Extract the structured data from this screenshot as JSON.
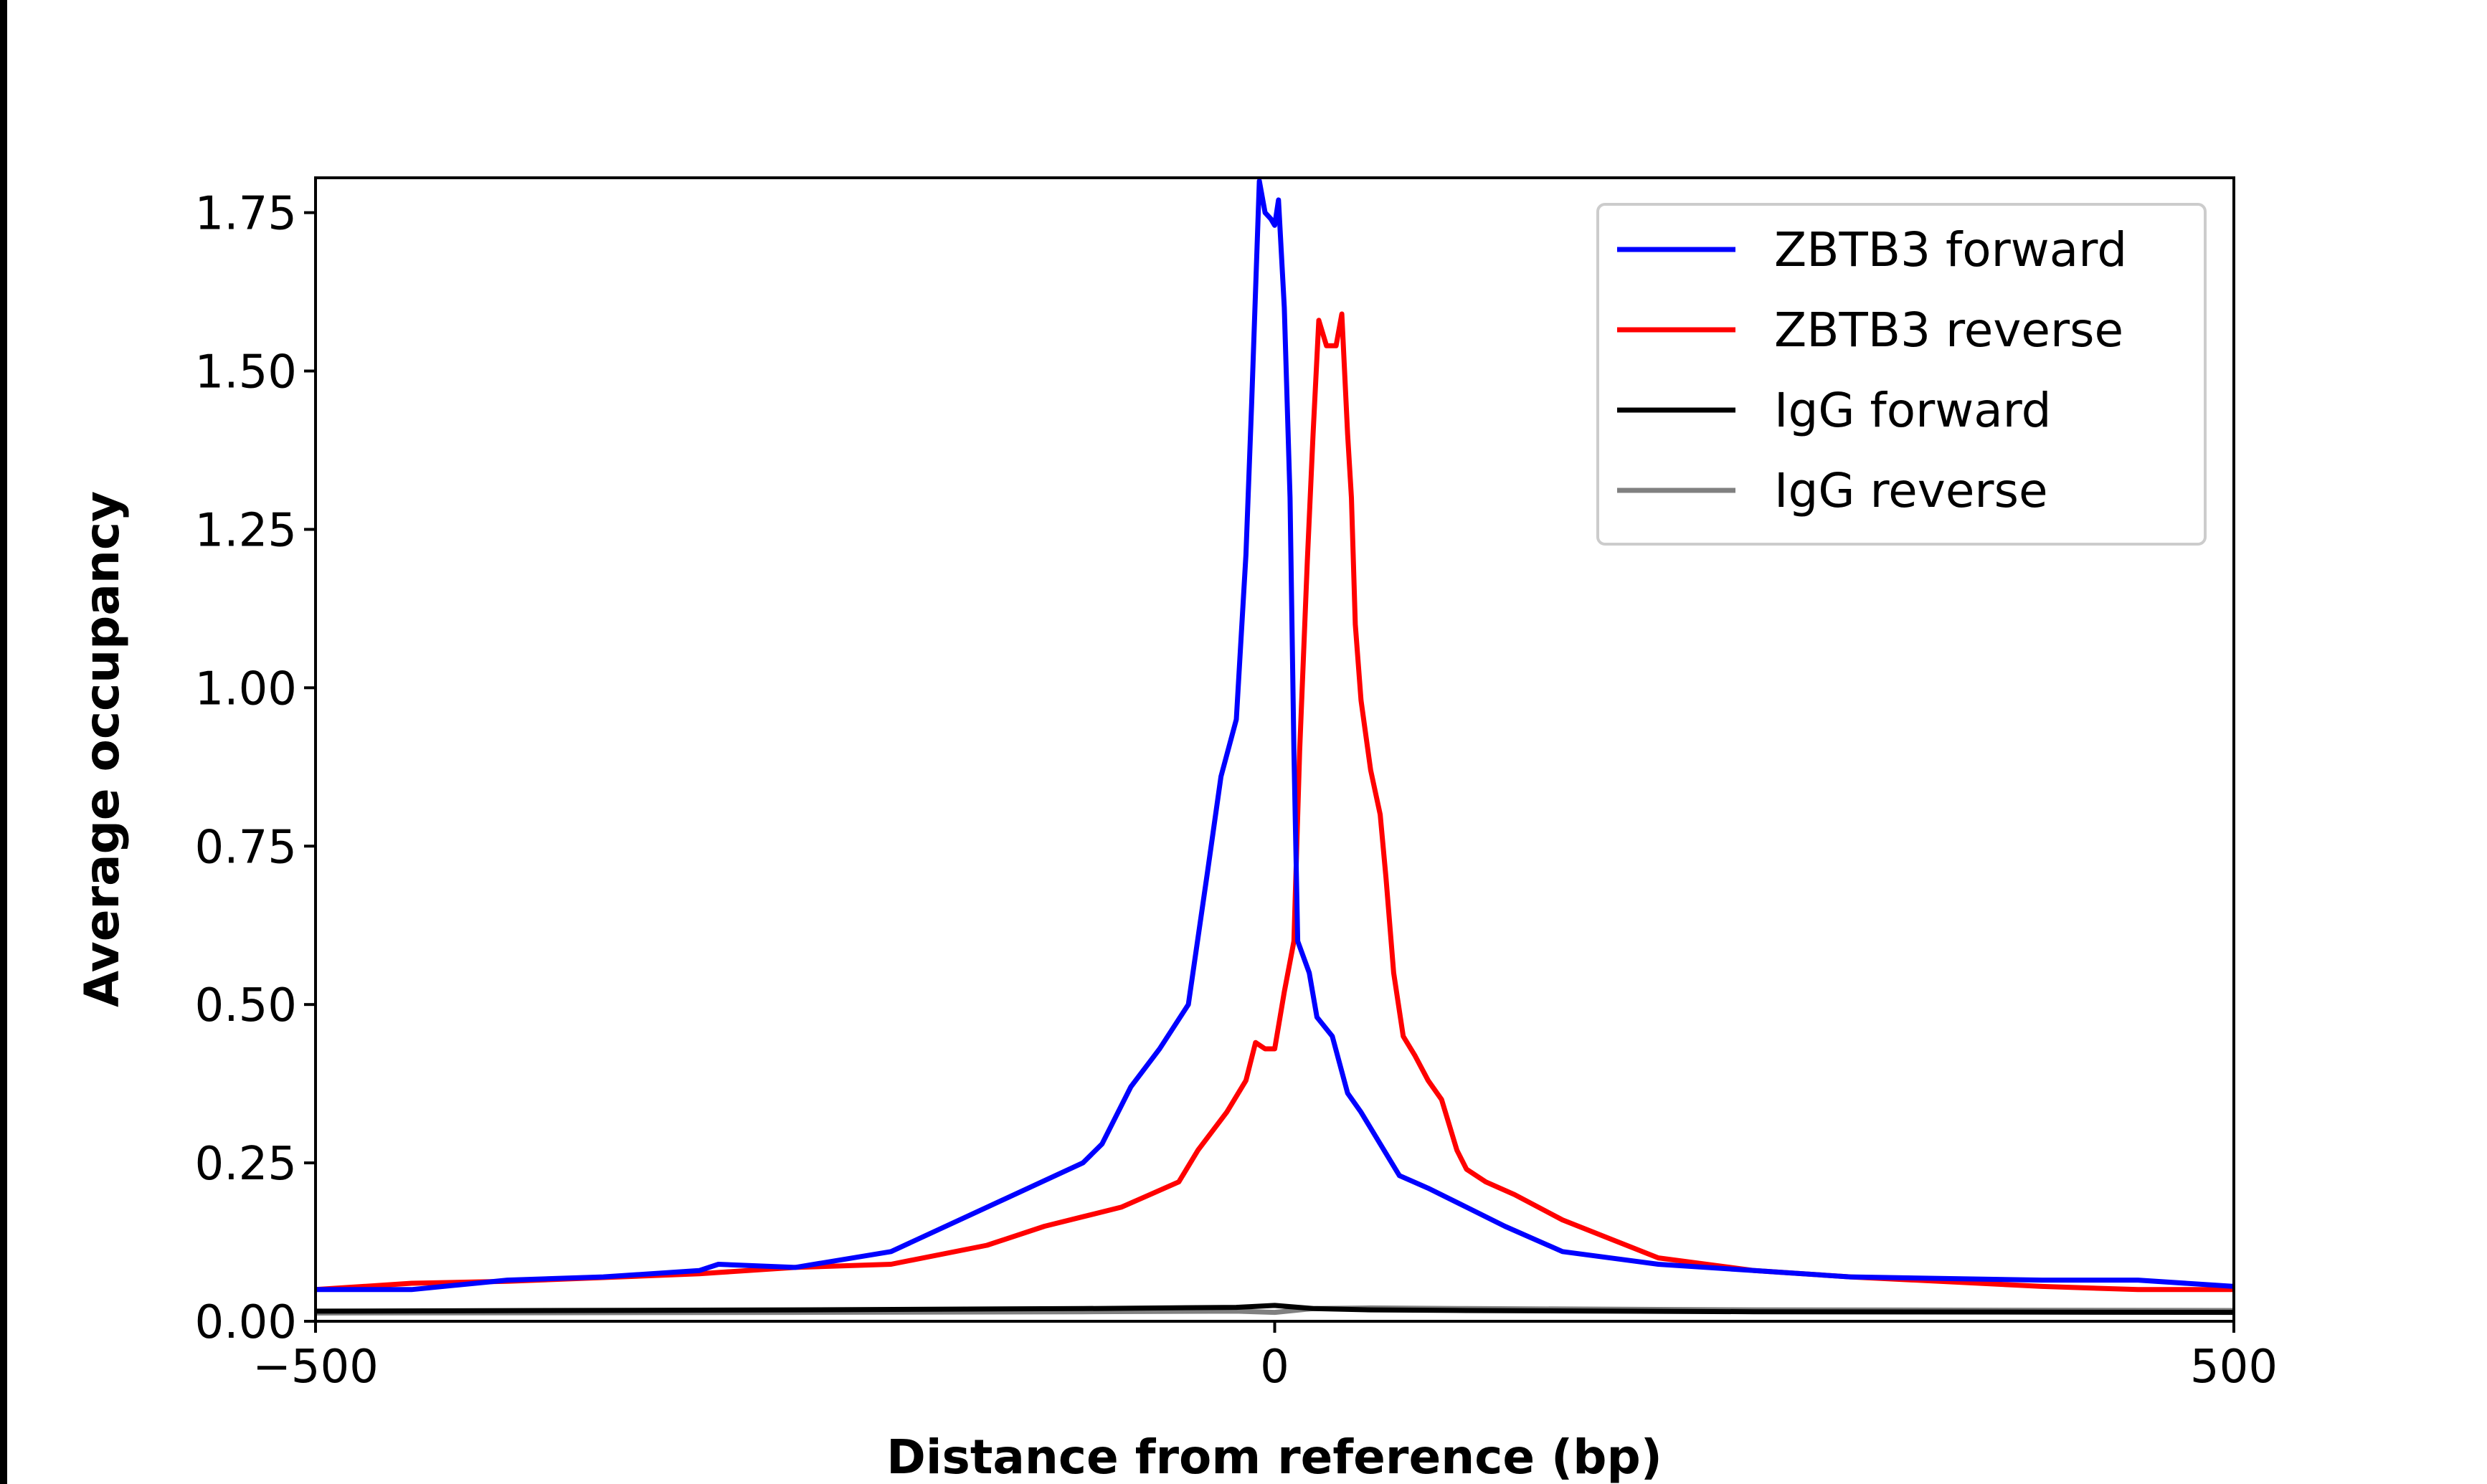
{
  "chart_data": {
    "type": "line",
    "title": "",
    "xlabel": "Distance from reference (bp)",
    "ylabel": "Average occupancy",
    "xlim": [
      -500,
      500
    ],
    "ylim": [
      0,
      1.805
    ],
    "xticks": [
      -500,
      0,
      500
    ],
    "xtick_labels": [
      "−500",
      "0",
      "500"
    ],
    "yticks": [
      0,
      0.25,
      0.5,
      0.75,
      1.0,
      1.25,
      1.5,
      1.75
    ],
    "ytick_labels": [
      "0.00",
      "0.25",
      "0.50",
      "0.75",
      "1.00",
      "1.25",
      "1.50",
      "1.75"
    ],
    "grid": false,
    "legend_position": "top-right",
    "series": [
      {
        "name": "ZBTB3 forward",
        "color": "#0000ff",
        "x": [
          -500,
          -450,
          -400,
          -350,
          -300,
          -290,
          -250,
          -200,
          -150,
          -100,
          -90,
          -75,
          -60,
          -45,
          -35,
          -28,
          -20,
          -15,
          -12,
          -8,
          -5,
          -2,
          0,
          2,
          5,
          8,
          10,
          12,
          18,
          22,
          30,
          38,
          45,
          55,
          65,
          80,
          100,
          120,
          150,
          200,
          250,
          300,
          400,
          450,
          500
        ],
        "y": [
          0.05,
          0.05,
          0.065,
          0.07,
          0.08,
          0.09,
          0.085,
          0.11,
          0.18,
          0.25,
          0.28,
          0.37,
          0.43,
          0.5,
          0.71,
          0.86,
          0.95,
          1.21,
          1.45,
          1.8,
          1.75,
          1.74,
          1.73,
          1.77,
          1.6,
          1.3,
          0.9,
          0.6,
          0.55,
          0.48,
          0.45,
          0.36,
          0.33,
          0.28,
          0.23,
          0.21,
          0.18,
          0.15,
          0.11,
          0.09,
          0.08,
          0.07,
          0.065,
          0.065,
          0.055
        ]
      },
      {
        "name": "ZBTB3 reverse",
        "color": "#ff0000",
        "x": [
          -500,
          -450,
          -400,
          -300,
          -250,
          -200,
          -150,
          -120,
          -100,
          -80,
          -65,
          -50,
          -40,
          -25,
          -15,
          -10,
          -5,
          0,
          5,
          10,
          13,
          17,
          20,
          23,
          27,
          32,
          35,
          38,
          40,
          42,
          45,
          50,
          55,
          58,
          62,
          67,
          73,
          80,
          87,
          95,
          100,
          110,
          125,
          150,
          175,
          200,
          250,
          300,
          400,
          450,
          500
        ],
        "y": [
          0.05,
          0.06,
          0.063,
          0.075,
          0.085,
          0.09,
          0.12,
          0.15,
          0.165,
          0.18,
          0.2,
          0.22,
          0.27,
          0.33,
          0.38,
          0.44,
          0.43,
          0.43,
          0.52,
          0.6,
          0.9,
          1.2,
          1.4,
          1.58,
          1.54,
          1.54,
          1.59,
          1.4,
          1.3,
          1.1,
          0.98,
          0.87,
          0.8,
          0.7,
          0.55,
          0.45,
          0.42,
          0.38,
          0.35,
          0.27,
          0.24,
          0.22,
          0.2,
          0.16,
          0.13,
          0.1,
          0.08,
          0.07,
          0.055,
          0.05,
          0.05
        ]
      },
      {
        "name": "IgG forward",
        "color": "#000000",
        "x": [
          -500,
          -250,
          -100,
          -20,
          0,
          20,
          50,
          100,
          250,
          500
        ],
        "y": [
          0.016,
          0.018,
          0.02,
          0.022,
          0.025,
          0.02,
          0.018,
          0.017,
          0.015,
          0.014
        ]
      },
      {
        "name": "IgG reverse",
        "color": "#808080",
        "x": [
          -500,
          -250,
          -100,
          -20,
          0,
          20,
          50,
          100,
          250,
          500
        ],
        "y": [
          0.013,
          0.014,
          0.015,
          0.016,
          0.014,
          0.02,
          0.021,
          0.02,
          0.018,
          0.017
        ]
      }
    ]
  }
}
